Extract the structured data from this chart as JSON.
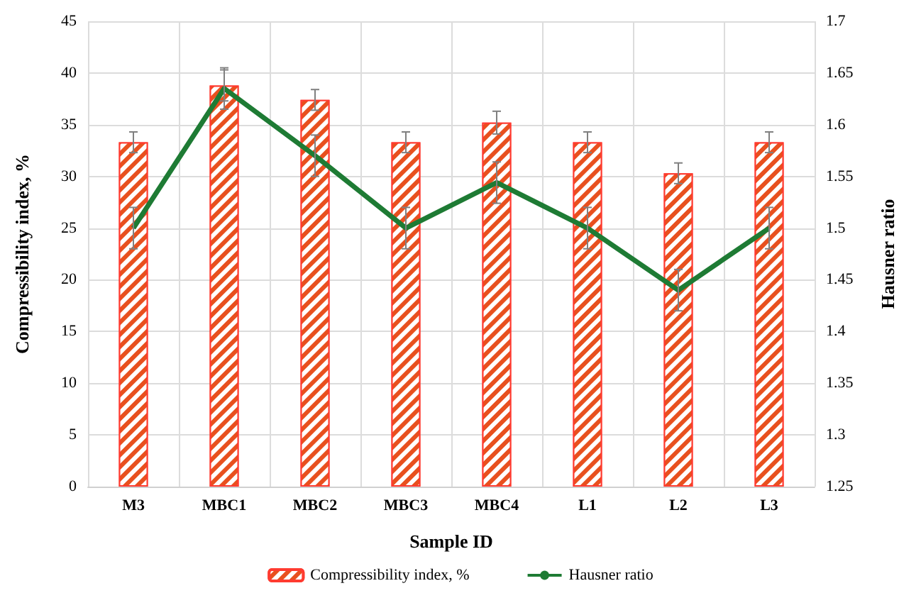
{
  "chart_data": {
    "type": "bar",
    "xlabel": "Sample ID",
    "ylabel": "Compressibility index, %",
    "y2label": "Hausner ratio",
    "categories": [
      "M3",
      "MBC1",
      "MBC2",
      "MBC3",
      "MBC4",
      "L1",
      "L2",
      "L3"
    ],
    "series": [
      {
        "name": "Compressibility index, %",
        "color": "#e8501e",
        "values": [
          33.3,
          38.8,
          37.4,
          33.3,
          35.2,
          33.3,
          30.3,
          33.3
        ],
        "errors": [
          1,
          1.5,
          1,
          1,
          1.1,
          1,
          1,
          1
        ]
      },
      {
        "name": "Hausner ratio",
        "type": "line",
        "axis": "y2",
        "color": "#1e7b34",
        "values": [
          1.5,
          1.635,
          1.57,
          1.5,
          1.544,
          1.5,
          1.44,
          1.5
        ],
        "errors": [
          0.02,
          0.02,
          0.02,
          0.02,
          0.02,
          0.02,
          0.02,
          0.02
        ]
      }
    ],
    "ylim": [
      0,
      45
    ],
    "yticks": [
      0,
      5,
      10,
      15,
      20,
      25,
      30,
      35,
      40,
      45
    ],
    "y2lim": [
      1.25,
      1.7
    ],
    "y2ticks": [
      1.25,
      1.3,
      1.35,
      1.4,
      1.45,
      1.5,
      1.55,
      1.6,
      1.65,
      1.7
    ],
    "grid": true,
    "legend": "bottom",
    "marker": "none"
  }
}
